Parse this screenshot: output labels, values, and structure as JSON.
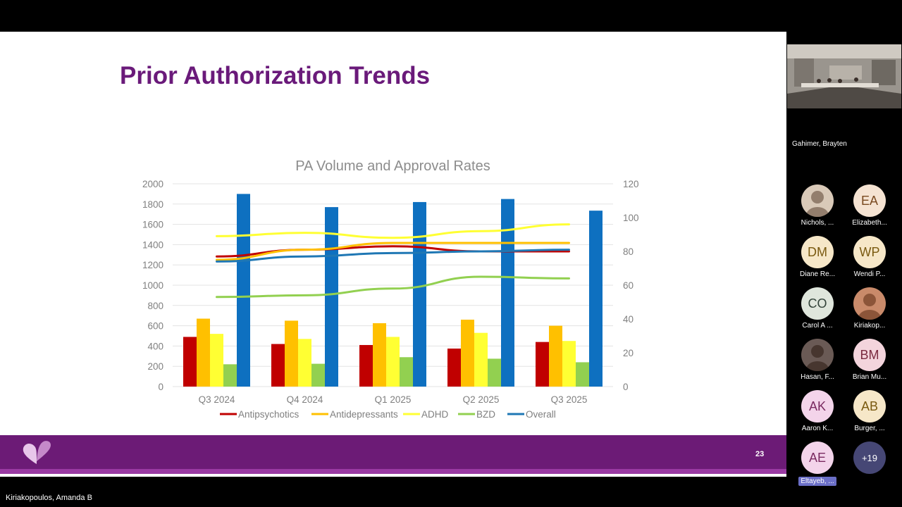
{
  "slide": {
    "title": "Prior Authorization Trends",
    "page_number": "23",
    "colors": {
      "title": "#6a1a7a",
      "footer": "#6c1b76",
      "footer_stripe": "#9a3aa3"
    }
  },
  "chart_data": {
    "type": "bar",
    "title": "PA Volume and Approval Rates",
    "categories": [
      "Q3 2024",
      "Q4 2024",
      "Q1 2025",
      "Q2 2025",
      "Q3 2025"
    ],
    "y_left": {
      "min": 0,
      "max": 2000,
      "step": 200,
      "ticks": [
        "0",
        "200",
        "400",
        "600",
        "800",
        "1000",
        "1200",
        "1400",
        "1600",
        "1800",
        "2000"
      ]
    },
    "y_right": {
      "min": 0,
      "max": 120,
      "step": 20,
      "ticks": [
        "0",
        "20",
        "40",
        "60",
        "80",
        "100",
        "120"
      ]
    },
    "bar_series": [
      {
        "name": "Antipsychotics",
        "color": "#c00000",
        "values": [
          490,
          420,
          410,
          375,
          440
        ]
      },
      {
        "name": "Antidepressants",
        "color": "#ffc000",
        "values": [
          670,
          650,
          625,
          660,
          600
        ]
      },
      {
        "name": "ADHD",
        "color": "#ffff33",
        "values": [
          520,
          470,
          490,
          530,
          450
        ]
      },
      {
        "name": "BZD",
        "color": "#92d050",
        "values": [
          220,
          225,
          290,
          275,
          240
        ]
      },
      {
        "name": "Overall",
        "color": "#0e70c0",
        "values": [
          1900,
          1770,
          1820,
          1850,
          1735
        ]
      }
    ],
    "line_series": [
      {
        "name": "Antipsychotics",
        "color": "#c00000",
        "values": [
          77,
          81,
          83,
          80,
          80
        ]
      },
      {
        "name": "Antidepressants",
        "color": "#ffc000",
        "values": [
          75,
          81,
          85,
          85,
          85
        ]
      },
      {
        "name": "ADHD",
        "color": "#ffff33",
        "values": [
          89,
          91,
          88,
          92,
          96
        ]
      },
      {
        "name": "BZD",
        "color": "#92d050",
        "values": [
          53,
          54,
          58,
          65,
          64
        ]
      },
      {
        "name": "Overall",
        "color": "#1f77b4",
        "values": [
          74,
          77,
          79,
          80,
          81
        ]
      }
    ],
    "legend": [
      "Antipsychotics",
      "Antidepressants",
      "ADHD",
      "BZD",
      "Overall"
    ],
    "legend_position": "bottom",
    "grid": true
  },
  "meeting": {
    "presenter": "Kiriakopoulos, Amanda B",
    "room": "Gahimer, Brayten",
    "participants": [
      {
        "initials": "",
        "name": "Nichols, ...",
        "photo": true,
        "bg": "#d9c9b8",
        "fg": "#5a4030"
      },
      {
        "initials": "EA",
        "name": "Elizabeth...",
        "photo": false,
        "bg": "#f5e3d2",
        "fg": "#7a4a20"
      },
      {
        "initials": "DM",
        "name": "Diane Re...",
        "photo": false,
        "bg": "#f6e7c8",
        "fg": "#7a5a10"
      },
      {
        "initials": "WP",
        "name": "Wendi P...",
        "photo": false,
        "bg": "#f6e7c8",
        "fg": "#7a5a10"
      },
      {
        "initials": "CO",
        "name": "Carol A ...",
        "photo": false,
        "bg": "#dfe6dc",
        "fg": "#33433a"
      },
      {
        "initials": "",
        "name": "Kiriakop...",
        "photo": true,
        "bg": "#c98a6a",
        "fg": "#5a2a10"
      },
      {
        "initials": "",
        "name": "Hasan, F...",
        "photo": true,
        "bg": "#6a5a55",
        "fg": "#2a1a10"
      },
      {
        "initials": "BM",
        "name": "Brian Mu...",
        "photo": false,
        "bg": "#f3d4dc",
        "fg": "#7a2a40"
      },
      {
        "initials": "AK",
        "name": "Aaron K...",
        "photo": false,
        "bg": "#f3d4ea",
        "fg": "#7a2a60"
      },
      {
        "initials": "AB",
        "name": "Burger, ...",
        "photo": false,
        "bg": "#f6e7c8",
        "fg": "#7a5a10"
      },
      {
        "initials": "AE",
        "name": "Eltayeb, ...",
        "photo": false,
        "bg": "#f3d4ea",
        "fg": "#7a2a60",
        "highlight": true
      },
      {
        "initials": "+19",
        "name": "",
        "photo": false,
        "bg": "#464775",
        "fg": "#ffffff"
      }
    ]
  }
}
